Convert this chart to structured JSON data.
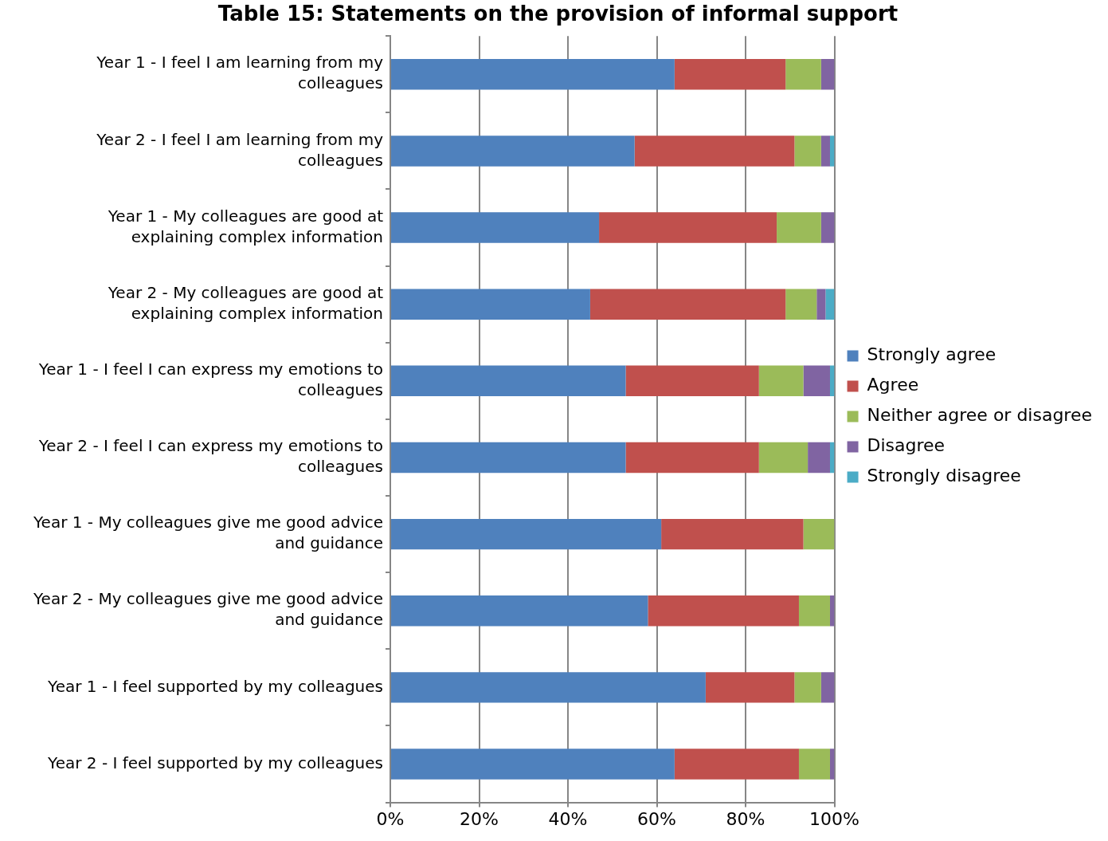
{
  "chart_data": {
    "type": "bar",
    "orientation": "horizontal",
    "stacked": true,
    "title": "Table 15: Statements on the provision of informal support",
    "categories": [
      "Year 1 - I feel I am learning from my colleagues",
      "Year 2 - I feel I am learning from my colleagues",
      "Year 1 - My colleagues are good at explaining complex information",
      "Year 2 - My colleagues are good at explaining complex information",
      "Year 1 - I feel I can express my emotions to colleagues",
      "Year 2 - I feel I can express my emotions to colleagues",
      "Year 1 - My colleagues give me good advice and guidance",
      "Year 2 - My colleagues give me good advice and guidance",
      "Year 1 - I feel supported by my colleagues",
      "Year 2 - I feel supported by my colleagues"
    ],
    "series": [
      {
        "name": "Strongly agree",
        "color": "#4f81bd",
        "values": [
          64,
          55,
          47,
          45,
          53,
          53,
          61,
          58,
          71,
          64
        ]
      },
      {
        "name": "Agree",
        "color": "#c0504d",
        "values": [
          25,
          36,
          40,
          44,
          30,
          30,
          32,
          34,
          20,
          28
        ]
      },
      {
        "name": "Neither agree or disagree",
        "color": "#9bbb59",
        "values": [
          8,
          6,
          10,
          7,
          10,
          11,
          7,
          7,
          6,
          7
        ]
      },
      {
        "name": "Disagree",
        "color": "#8064a2",
        "values": [
          3,
          2,
          3,
          2,
          6,
          5,
          0,
          1,
          3,
          1
        ]
      },
      {
        "name": "Strongly disagree",
        "color": "#4bacc6",
        "values": [
          0,
          1,
          0,
          2,
          1,
          1,
          0,
          0,
          0,
          0
        ]
      }
    ],
    "xlim": [
      0,
      100
    ],
    "xticks": [
      {
        "value": 0,
        "label": "0%"
      },
      {
        "value": 20,
        "label": "20%"
      },
      {
        "value": 40,
        "label": "40%"
      },
      {
        "value": 60,
        "label": "60%"
      },
      {
        "value": 80,
        "label": "80%"
      },
      {
        "value": 100,
        "label": "100%"
      }
    ],
    "grid": "x",
    "legend": "right"
  }
}
